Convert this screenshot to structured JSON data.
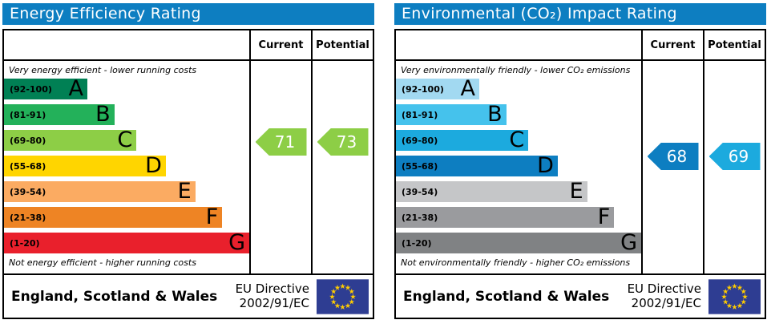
{
  "theme": {
    "header_blue": "#0d7ec1",
    "border_color": "#000000"
  },
  "columns": {
    "current": "Current",
    "potential": "Potential"
  },
  "footer": {
    "region": "England, Scotland & Wales",
    "directive_line1": "EU Directive",
    "directive_line2": "2002/91/EC",
    "eu_flag_icon": {
      "background": "#2e3d92",
      "star_color": "#ffcc00"
    }
  },
  "chart_data": [
    {
      "type": "bar",
      "title": "Energy Efficiency Rating",
      "top_note": "Very energy efficient - lower running costs",
      "bottom_note": "Not energy efficient - higher running costs",
      "categories": [
        "A",
        "B",
        "C",
        "D",
        "E",
        "F",
        "G"
      ],
      "band_ranges": [
        "92-100",
        "81-91",
        "69-80",
        "55-68",
        "39-54",
        "21-38",
        "1-20"
      ],
      "values_pct": [
        34,
        45,
        54,
        66,
        78,
        89,
        100
      ],
      "bands": [
        {
          "letter": "A",
          "range": "(92-100)",
          "color": "#008054",
          "width": "34%"
        },
        {
          "letter": "B",
          "range": "(81-91)",
          "color": "#23b15a",
          "width": "45%"
        },
        {
          "letter": "C",
          "range": "(69-80)",
          "color": "#8dce46",
          "width": "54%"
        },
        {
          "letter": "D",
          "range": "(55-68)",
          "color": "#ffd500",
          "width": "66%"
        },
        {
          "letter": "E",
          "range": "(39-54)",
          "color": "#fbab62",
          "width": "78%"
        },
        {
          "letter": "F",
          "range": "(21-38)",
          "color": "#ee8424",
          "width": "89%"
        },
        {
          "letter": "G",
          "range": "(1-20)",
          "color": "#e9202c",
          "width": "100%"
        }
      ],
      "current": {
        "value": 71,
        "color": "#8dce46"
      },
      "potential": {
        "value": 73,
        "color": "#8dce46"
      }
    },
    {
      "type": "bar",
      "title": "Environmental (CO₂) Impact Rating",
      "top_note": "Very environmentally friendly - lower CO₂ emissions",
      "bottom_note": "Not environmentally friendly - higher CO₂ emissions",
      "categories": [
        "A",
        "B",
        "C",
        "D",
        "E",
        "F",
        "G"
      ],
      "band_ranges": [
        "92-100",
        "81-91",
        "69-80",
        "55-68",
        "39-54",
        "21-38",
        "1-20"
      ],
      "values_pct": [
        34,
        45,
        54,
        66,
        78,
        89,
        100
      ],
      "bands": [
        {
          "letter": "A",
          "range": "(92-100)",
          "color": "#a2d9f1",
          "width": "34%"
        },
        {
          "letter": "B",
          "range": "(81-91)",
          "color": "#45c2ec",
          "width": "45%"
        },
        {
          "letter": "C",
          "range": "(69-80)",
          "color": "#1caade",
          "width": "54%"
        },
        {
          "letter": "D",
          "range": "(55-68)",
          "color": "#0d7ec1",
          "width": "66%"
        },
        {
          "letter": "E",
          "range": "(39-54)",
          "color": "#c5c6c8",
          "width": "78%"
        },
        {
          "letter": "F",
          "range": "(21-38)",
          "color": "#9a9b9e",
          "width": "89%"
        },
        {
          "letter": "G",
          "range": "(1-20)",
          "color": "#808284",
          "width": "100%"
        }
      ],
      "current": {
        "value": 68,
        "color": "#0d7ec1"
      },
      "potential": {
        "value": 69,
        "color": "#1caade"
      }
    }
  ]
}
